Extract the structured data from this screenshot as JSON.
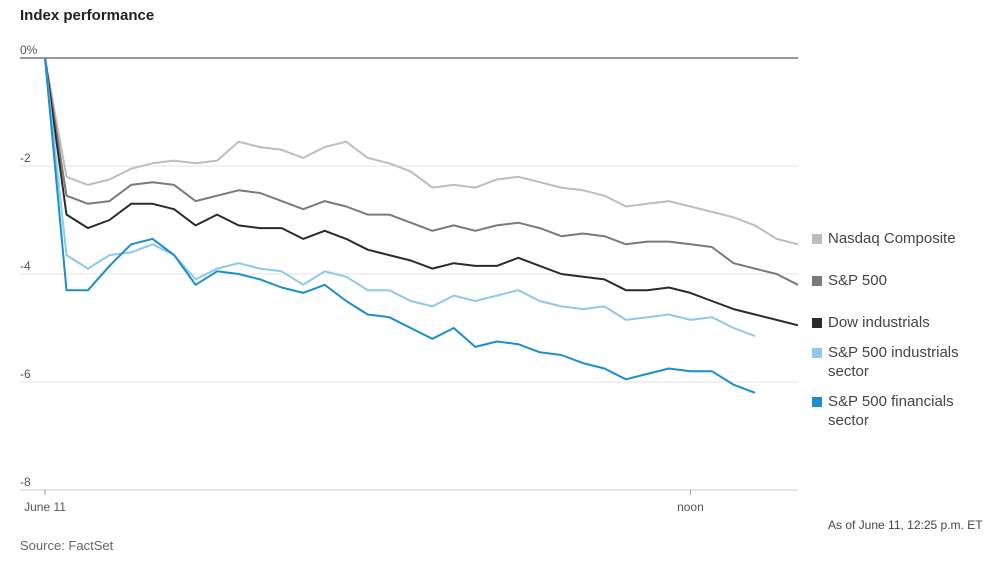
{
  "title": "Index performance",
  "source": "Source: FactSet",
  "timestamp": "As of June 11, 12:25 p.m. ET",
  "chart_data": {
    "type": "line",
    "categories": [
      "June 11",
      null,
      null,
      null,
      null,
      null,
      null,
      null,
      null,
      null,
      null,
      null,
      null,
      null,
      null,
      null,
      null,
      null,
      null,
      null,
      null,
      null,
      null,
      null,
      null,
      null,
      null,
      null,
      null,
      null,
      "noon",
      null,
      null,
      null,
      null,
      null
    ],
    "ylim": [
      -8,
      0
    ],
    "yticks": [
      {
        "value": 0,
        "label": "0%"
      },
      -2,
      -4,
      -6,
      -8
    ],
    "grid": true,
    "series": [
      {
        "name": "Nasdaq Composite",
        "color": "#bdbdbd",
        "values": [
          0,
          -2.2,
          -2.35,
          -2.25,
          -2.05,
          -1.95,
          -1.9,
          -1.95,
          -1.9,
          -1.55,
          -1.65,
          -1.7,
          -1.85,
          -1.65,
          -1.55,
          -1.85,
          -1.95,
          -2.1,
          -2.4,
          -2.35,
          -2.4,
          -2.25,
          -2.2,
          -2.3,
          -2.4,
          -2.45,
          -2.55,
          -2.75,
          -2.7,
          -2.65,
          -2.75,
          -2.85,
          -2.95,
          -3.1,
          -3.35,
          -3.45
        ]
      },
      {
        "name": "S&P 500",
        "color": "#7a7a7a",
        "values": [
          0,
          -2.55,
          -2.7,
          -2.65,
          -2.35,
          -2.3,
          -2.35,
          -2.65,
          -2.55,
          -2.45,
          -2.5,
          -2.65,
          -2.8,
          -2.65,
          -2.75,
          -2.9,
          -2.9,
          -3.05,
          -3.2,
          -3.1,
          -3.2,
          -3.1,
          -3.05,
          -3.15,
          -3.3,
          -3.25,
          -3.3,
          -3.45,
          -3.4,
          -3.4,
          -3.45,
          -3.5,
          -3.8,
          -3.9,
          -4.0,
          -4.2
        ]
      },
      {
        "name": "Dow industrials",
        "color": "#2b2b2b",
        "values": [
          0,
          -2.9,
          -3.15,
          -3.0,
          -2.7,
          -2.7,
          -2.8,
          -3.1,
          -2.9,
          -3.1,
          -3.15,
          -3.15,
          -3.35,
          -3.2,
          -3.35,
          -3.55,
          -3.65,
          -3.75,
          -3.9,
          -3.8,
          -3.85,
          -3.85,
          -3.7,
          -3.85,
          -4.0,
          -4.05,
          -4.1,
          -4.3,
          -4.3,
          -4.25,
          -4.35,
          -4.5,
          -4.65,
          -4.75,
          -4.85,
          -4.95
        ]
      },
      {
        "name": "S&P 500 industrials sector",
        "color": "#8fc8e8",
        "values": [
          0,
          -3.65,
          -3.9,
          -3.65,
          -3.6,
          -3.45,
          -3.65,
          -4.1,
          -3.9,
          -3.8,
          -3.9,
          -3.95,
          -4.2,
          -3.95,
          -4.05,
          -4.3,
          -4.3,
          -4.5,
          -4.6,
          -4.4,
          -4.5,
          -4.4,
          -4.3,
          -4.5,
          -4.6,
          -4.65,
          -4.6,
          -4.85,
          -4.8,
          -4.75,
          -4.85,
          -4.8,
          -5.0,
          -5.15,
          null,
          null
        ]
      },
      {
        "name": "S&P 500 financials sector",
        "color": "#1a8fcc",
        "values": [
          0,
          -4.3,
          -4.3,
          -3.85,
          -3.45,
          -3.35,
          -3.65,
          -4.2,
          -3.95,
          -4.0,
          -4.1,
          -4.25,
          -4.35,
          -4.2,
          -4.5,
          -4.75,
          -4.8,
          -5.0,
          -5.2,
          -5.0,
          -5.35,
          -5.25,
          -5.3,
          -5.45,
          -5.5,
          -5.65,
          -5.75,
          -5.95,
          -5.85,
          -5.75,
          -5.8,
          -5.8,
          -6.05,
          -6.2,
          null,
          null
        ]
      }
    ]
  }
}
